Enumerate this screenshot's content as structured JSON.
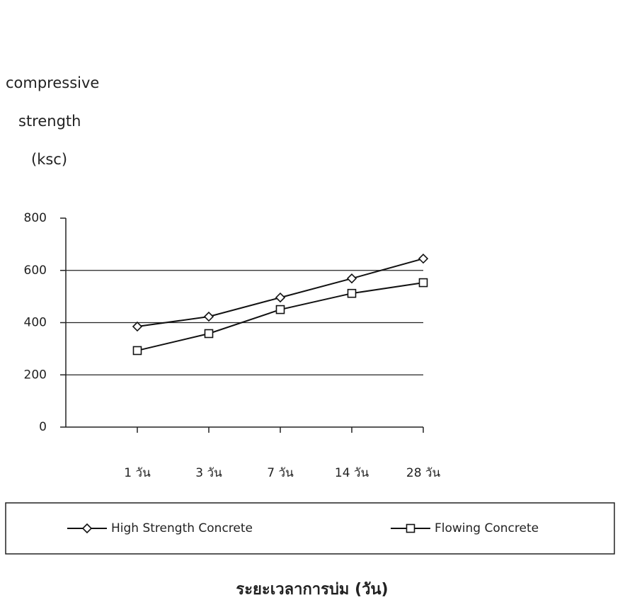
{
  "chart_data": {
    "type": "line",
    "y_label": [
      "compressive",
      "strength",
      "(ksc)"
    ],
    "x_label": "ระยะเวลาการบ่ม (วัน)",
    "categories": [
      "1 วัน",
      "3 วัน",
      "7 วัน",
      "14 วัน",
      "28 วัน"
    ],
    "series": [
      {
        "name": "High Strength Concrete",
        "color": "#111111",
        "marker": "diamond",
        "values": [
          385,
          423,
          496,
          569,
          645
        ]
      },
      {
        "name": "Flowing Concrete",
        "color": "#111111",
        "marker": "square",
        "values": [
          293,
          358,
          450,
          512,
          553
        ]
      }
    ],
    "ylim": [
      0,
      800
    ],
    "yticks": [
      0,
      200,
      400,
      600,
      800
    ],
    "grid": true,
    "legend": "bottom"
  }
}
